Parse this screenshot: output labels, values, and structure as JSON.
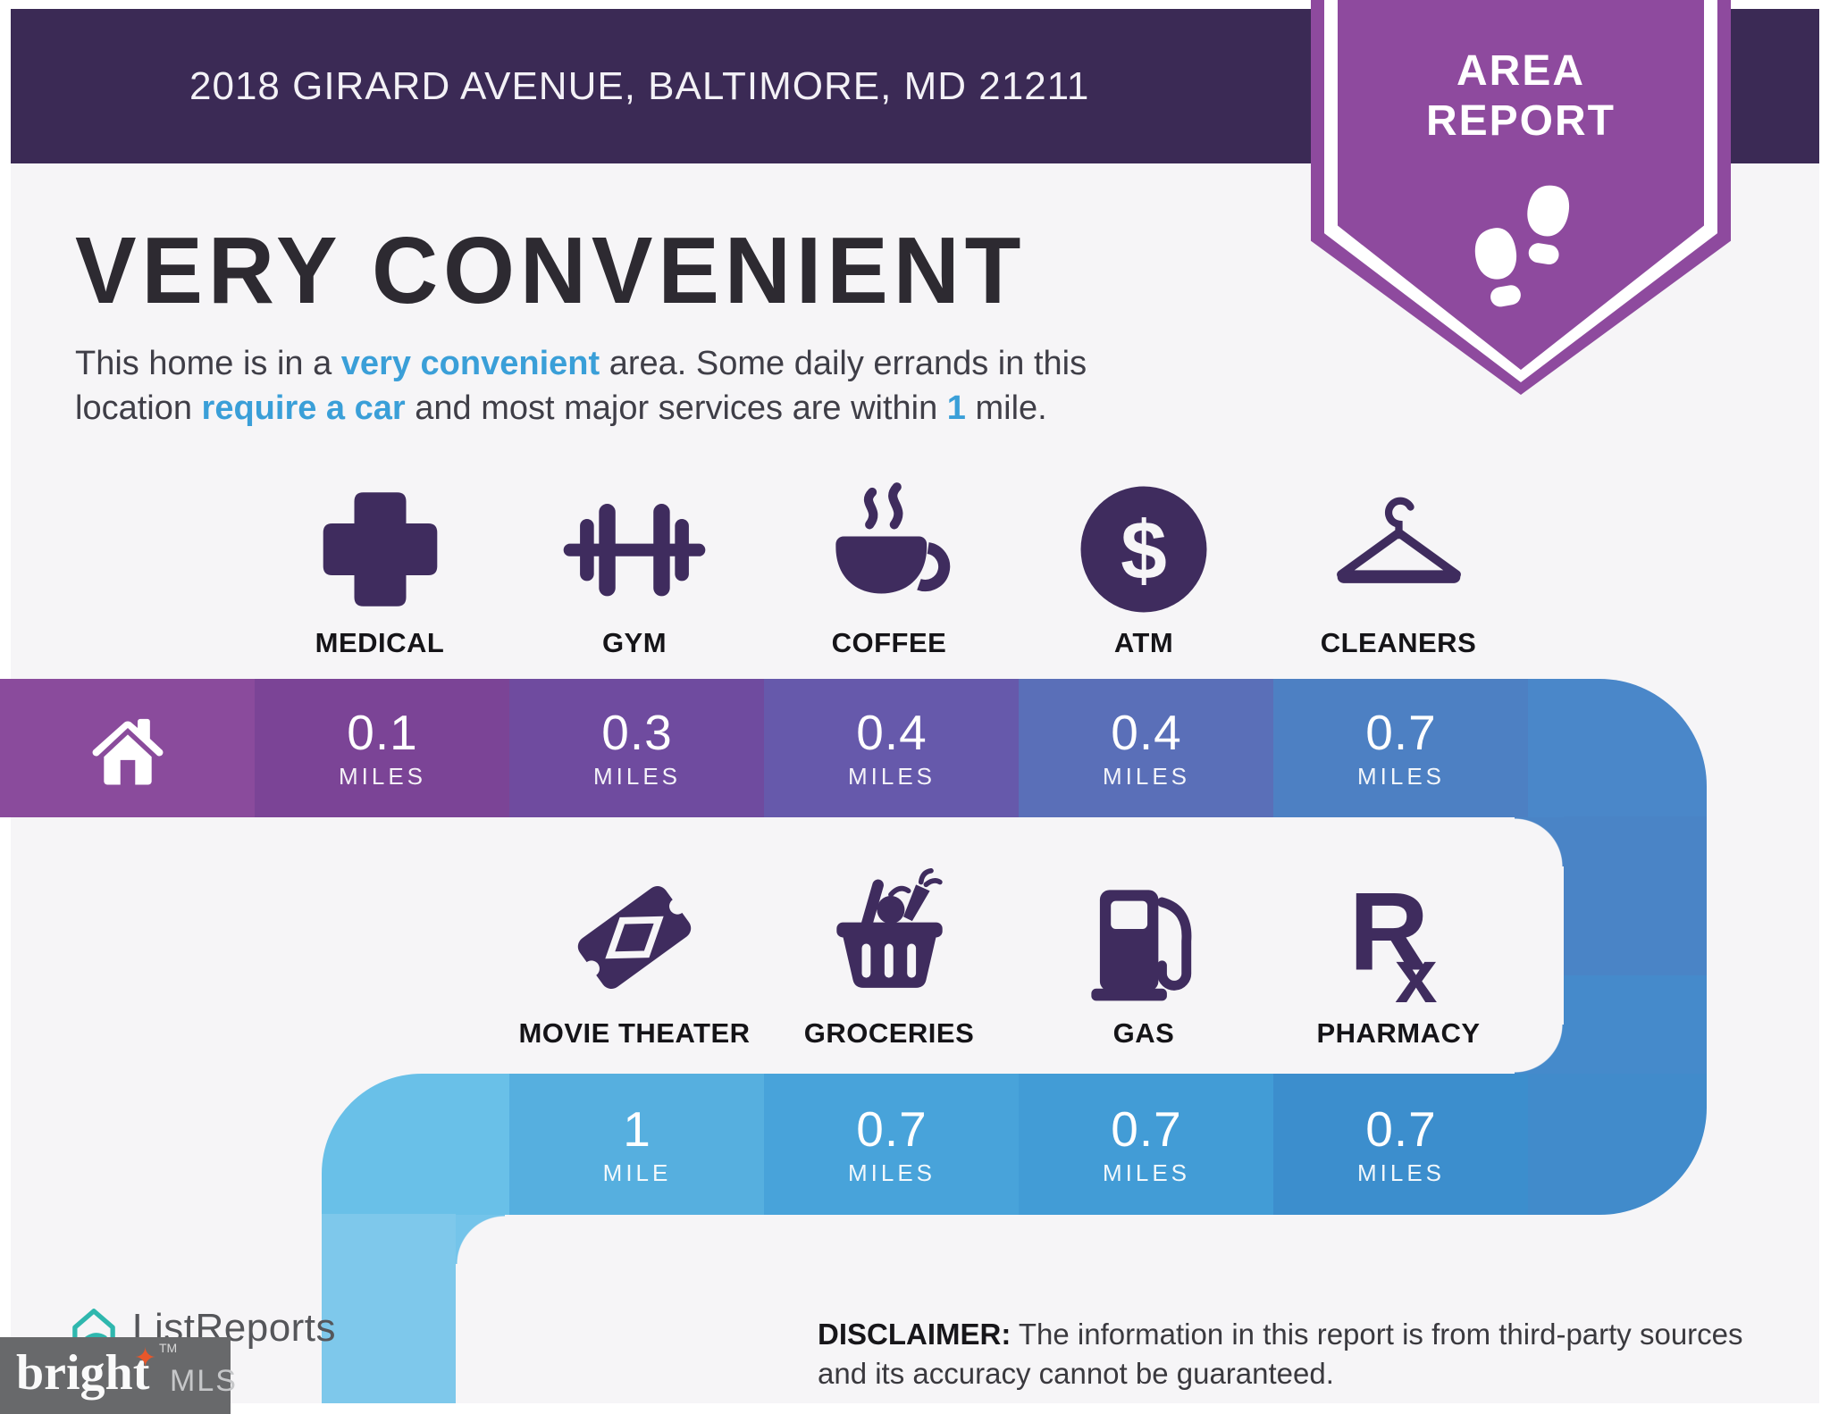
{
  "header": {
    "address": "2018 GIRARD AVENUE, BALTIMORE, MD 21211"
  },
  "badge": {
    "line1": "AREA",
    "line2": "REPORT"
  },
  "headline": {
    "title": "VERY CONVENIENT",
    "lines": [
      [
        {
          "t": "This home is in a ",
          "hl": false
        },
        {
          "t": "very convenient",
          "hl": true
        },
        {
          "t": " area. Some daily errands in this",
          "hl": false
        }
      ],
      [
        {
          "t": "location ",
          "hl": false
        },
        {
          "t": "require a car",
          "hl": true
        },
        {
          "t": " and most major services are within ",
          "hl": false
        },
        {
          "t": "1",
          "hl": true
        },
        {
          "t": " mile.",
          "hl": false
        }
      ]
    ]
  },
  "band1": {
    "home_block_color": "#8a4b9c",
    "segments": [
      {
        "label": "MEDICAL",
        "value": "0.1",
        "unit": "MILES",
        "color": "#7b4496",
        "icon": "medical-cross-icon"
      },
      {
        "label": "GYM",
        "value": "0.3",
        "unit": "MILES",
        "color": "#6f4b9f",
        "icon": "dumbbell-icon"
      },
      {
        "label": "COFFEE",
        "value": "0.4",
        "unit": "MILES",
        "color": "#6659ab",
        "icon": "coffee-cup-icon"
      },
      {
        "label": "ATM",
        "value": "0.4",
        "unit": "MILES",
        "color": "#5a6fb8",
        "icon": "dollar-circle-icon"
      },
      {
        "label": "CLEANERS",
        "value": "0.7",
        "unit": "MILES",
        "color": "#4d80c3",
        "icon": "hanger-icon"
      }
    ],
    "wrap_color": "#4a87c9",
    "limb_upper_color": "#4a84c6",
    "limb_lower_color": "#458acb"
  },
  "band2": {
    "segments": [
      {
        "label": "MOVIE THEATER",
        "value": "1",
        "unit": "MILE",
        "color": "#56afdf",
        "icon": "movie-ticket-icon"
      },
      {
        "label": "GROCERIES",
        "value": "0.7",
        "unit": "MILES",
        "color": "#48a3da",
        "icon": "grocery-basket-icon"
      },
      {
        "label": "GAS",
        "value": "0.7",
        "unit": "MILES",
        "color": "#429cd6",
        "icon": "gas-pump-icon"
      },
      {
        "label": "PHARMACY",
        "value": "0.7",
        "unit": "MILES",
        "color": "#3c8ecd",
        "icon": "rx-icon"
      }
    ],
    "corner_color": "#418bcb",
    "wrap_color": "#69c0e8",
    "limb_color": "#7ec8eb"
  },
  "footer": {
    "listreports_label": "ListReports",
    "bright_label": "bright",
    "bright_tm": "TM",
    "mls_label": "MLS",
    "disclaimer_label": "DISCLAIMER:",
    "disclaimer_text": " The information in this report is from third-party sources and its accuracy cannot be guaranteed."
  },
  "colors": {
    "page_background": "#f6f5f7",
    "header_bar": "#3b2a55",
    "badge_purple": "#8e4a9e",
    "icon_purple": "#3f2c5e",
    "heading_text": "#2d2a31",
    "highlight_blue": "#3a9fd8",
    "listreports_teal": "#2fb7ae",
    "bright_box_gray": "#68696b",
    "bright_star_orange": "#e8572a"
  }
}
